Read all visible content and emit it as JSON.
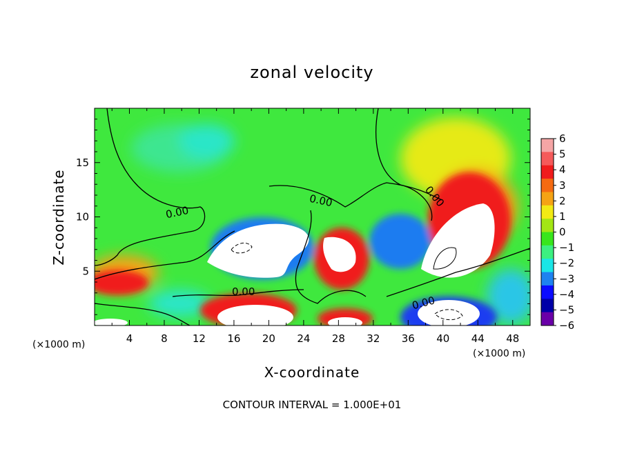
{
  "chart_data": {
    "type": "heatmap",
    "title": "zonal velocity",
    "xlabel": "X-coordinate",
    "ylabel": "Z-coordinate",
    "x_unit": "(×1000 m)",
    "x_unit_right": "(×1000 m)",
    "xlim": [
      0,
      50
    ],
    "ylim": [
      0,
      20
    ],
    "xticks": [
      "4",
      "8",
      "12",
      "16",
      "20",
      "24",
      "28",
      "32",
      "36",
      "40",
      "44",
      "48"
    ],
    "yticks": [
      "5",
      "10",
      "15"
    ],
    "colorbar": {
      "ticks": [
        "6",
        "5",
        "4",
        "3",
        "2",
        "1",
        "0",
        "−1",
        "−2",
        "−3",
        "−4",
        "−5",
        "−6"
      ],
      "colors": [
        "#f5a5a5",
        "#f55a5a",
        "#f01c1c",
        "#f56a12",
        "#f5a314",
        "#f2ea14",
        "#a3e614",
        "#38e61c",
        "#3cf080",
        "#1ae6e6",
        "#1e82f0",
        "#0a0aff",
        "#0000a8",
        "#6a00a8"
      ]
    },
    "contour_labels": [
      "0.00",
      "0.00",
      "0.00",
      "0.00",
      "0.00"
    ],
    "annotation": "CONTOUR INTERVAL = 1.000E+01",
    "grid": false
  }
}
